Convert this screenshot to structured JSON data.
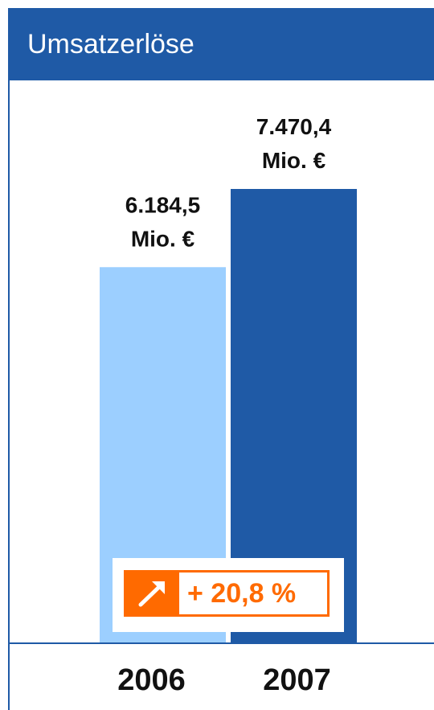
{
  "header": {
    "title": "Umsatzerlöse"
  },
  "colors": {
    "header_bg": "#1f5aa6",
    "bar_2006": "#9ccfff",
    "bar_2007": "#1f5aa6",
    "accent": "#ff6a00"
  },
  "chart_data": {
    "type": "bar",
    "categories": [
      "2006",
      "2007"
    ],
    "values": [
      6184.5,
      7470.4
    ],
    "value_labels": [
      [
        "6.184,5",
        "Mio. €"
      ],
      [
        "7.470,4",
        "Mio. €"
      ]
    ],
    "title": "Umsatzerlöse",
    "xlabel": "",
    "ylabel": "",
    "grid": false,
    "legend": "none",
    "annotation": {
      "icon": "arrow-up-right-icon",
      "text": "+ 20,8 %"
    }
  }
}
